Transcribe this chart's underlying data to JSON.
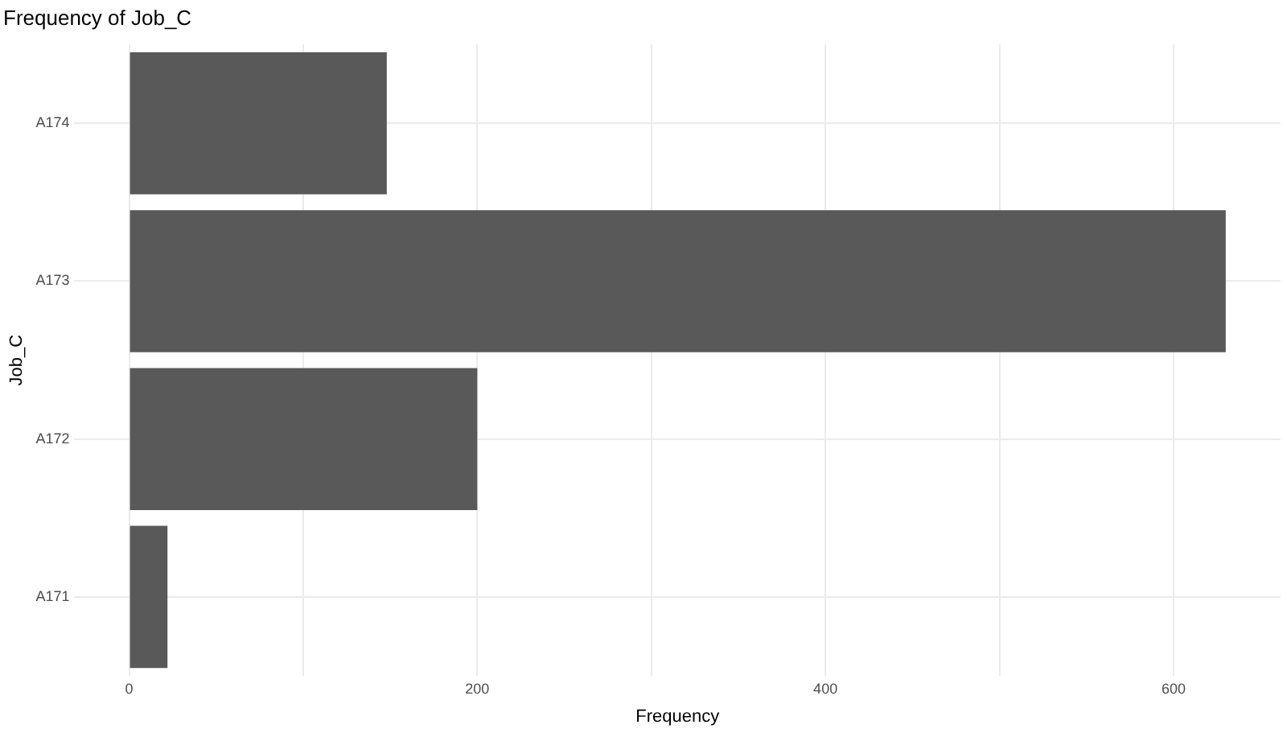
{
  "chart_data": {
    "type": "bar",
    "orientation": "horizontal",
    "title": "Frequency of Job_C",
    "xlabel": "Frequency",
    "ylabel": "Job_C",
    "categories": [
      "A174",
      "A173",
      "A172",
      "A171"
    ],
    "values": [
      148,
      630,
      200,
      22
    ],
    "color": "#595959",
    "xlim": [
      -31.5,
      661.5
    ],
    "xticks": [
      0,
      {
        "value": 100,
        "label": null
      },
      200,
      {
        "value": 300,
        "label": null
      },
      400,
      {
        "value": 500,
        "label": null
      },
      600
    ],
    "grid": true
  }
}
